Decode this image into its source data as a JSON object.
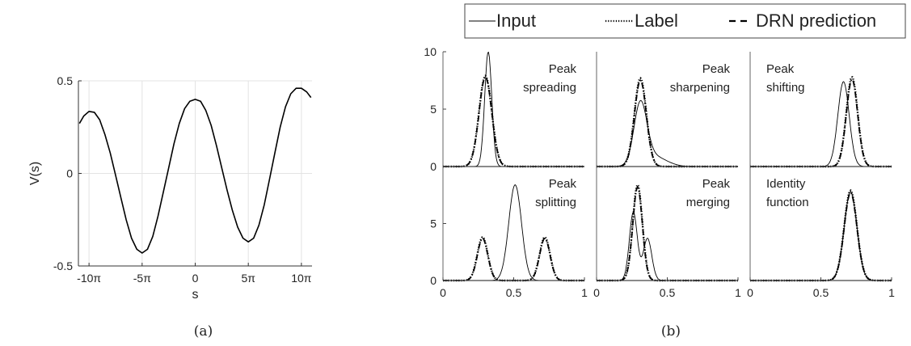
{
  "chart_data": [
    {
      "id": "a",
      "type": "line",
      "caption": "(a)",
      "xlabel": "s",
      "ylabel": "V(s)",
      "xlim": [
        -11.0,
        11.0
      ],
      "ylim": [
        -0.5,
        0.5
      ],
      "xunit": "pi",
      "xticks": [
        -10,
        -5,
        0,
        5,
        10
      ],
      "xtick_labels": [
        "-10π",
        "-5π",
        "0",
        "5π",
        "10π"
      ],
      "yticks": [
        -0.5,
        0,
        0.5
      ],
      "ytick_labels": [
        "-0.5",
        "0",
        "0.5"
      ],
      "grid": true,
      "series": [
        {
          "style": "solid",
          "color": "#000000",
          "x": [
            -10.9,
            -10.5,
            -10.0,
            -9.5,
            -9.0,
            -8.5,
            -8.0,
            -7.5,
            -7.0,
            -6.5,
            -6.0,
            -5.5,
            -5.0,
            -4.5,
            -4.0,
            -3.5,
            -3.0,
            -2.5,
            -2.0,
            -1.5,
            -1.0,
            -0.5,
            0.0,
            0.5,
            1.0,
            1.5,
            2.0,
            2.5,
            3.0,
            3.5,
            4.0,
            4.5,
            5.0,
            5.5,
            6.0,
            6.5,
            7.0,
            7.5,
            8.0,
            8.5,
            9.0,
            9.5,
            10.0,
            10.5,
            10.9
          ],
          "y": [
            0.27,
            0.31,
            0.335,
            0.33,
            0.29,
            0.21,
            0.11,
            -0.01,
            -0.13,
            -0.25,
            -0.35,
            -0.41,
            -0.43,
            -0.41,
            -0.34,
            -0.23,
            -0.1,
            0.03,
            0.16,
            0.27,
            0.35,
            0.39,
            0.4,
            0.39,
            0.34,
            0.26,
            0.15,
            0.03,
            -0.09,
            -0.2,
            -0.29,
            -0.35,
            -0.37,
            -0.35,
            -0.28,
            -0.17,
            -0.03,
            0.11,
            0.25,
            0.36,
            0.43,
            0.46,
            0.46,
            0.44,
            0.41
          ]
        }
      ]
    },
    {
      "id": "b",
      "type": "line",
      "caption": "(b)",
      "legend": {
        "position": "top",
        "entries": [
          {
            "label": "Input",
            "style": "solid"
          },
          {
            "label": "Label",
            "style": "dotted"
          },
          {
            "label": "DRN prediction",
            "style": "dashdot"
          }
        ]
      },
      "xlim": [
        0,
        1
      ],
      "ylim_top": [
        0,
        10
      ],
      "ylim_bottom": [
        0,
        10
      ],
      "yticks_top": [
        0,
        5,
        10
      ],
      "ytick_labels_top": [
        "0",
        "5",
        "10"
      ],
      "yticks_bottom": [
        0,
        5
      ],
      "ytick_labels_bottom": [
        "0",
        "5"
      ],
      "xticks": [
        0,
        0.5,
        1
      ],
      "xtick_labels": [
        "0",
        "0.5",
        "1"
      ],
      "grid": false,
      "panels": [
        {
          "label": [
            "Peak",
            "spreading"
          ],
          "input": [
            [
              0.32,
              10.0,
              0.025
            ]
          ],
          "label_curve": [
            [
              0.3,
              7.9,
              0.045
            ]
          ],
          "prediction": [
            [
              0.3,
              7.8,
              0.045
            ]
          ]
        },
        {
          "label": [
            "Peak",
            "sharpening"
          ],
          "input": [
            [
              0.31,
              5.2,
              0.045
            ],
            [
              0.4,
              0.9,
              0.09
            ]
          ],
          "label_curve": [
            [
              0.31,
              7.7,
              0.042
            ]
          ],
          "prediction": [
            [
              0.31,
              7.5,
              0.042
            ]
          ]
        },
        {
          "label": [
            "Peak",
            "shifting"
          ],
          "input": [
            [
              0.66,
              7.4,
              0.04
            ]
          ],
          "label_curve": [
            [
              0.72,
              7.8,
              0.04
            ]
          ],
          "prediction": [
            [
              0.72,
              7.6,
              0.04
            ]
          ]
        },
        {
          "label": [
            "Peak",
            "splitting"
          ],
          "input": [
            [
              0.51,
              8.4,
              0.045
            ]
          ],
          "label_curve": [
            [
              0.28,
              3.8,
              0.037
            ],
            [
              0.72,
              3.8,
              0.037
            ]
          ],
          "prediction": [
            [
              0.28,
              3.7,
              0.037
            ],
            [
              0.72,
              3.7,
              0.037
            ]
          ]
        },
        {
          "label": [
            "Peak",
            "merging"
          ],
          "input": [
            [
              0.26,
              6.0,
              0.028
            ],
            [
              0.36,
              3.7,
              0.03
            ]
          ],
          "label_curve": [
            [
              0.29,
              8.4,
              0.034
            ]
          ],
          "prediction": [
            [
              0.29,
              8.2,
              0.034
            ]
          ]
        },
        {
          "label": [
            "Identity",
            "function"
          ],
          "input": [
            [
              0.71,
              7.8,
              0.045
            ]
          ],
          "label_curve": [
            [
              0.71,
              7.9,
              0.045
            ]
          ],
          "prediction": [
            [
              0.71,
              7.7,
              0.045
            ]
          ]
        }
      ]
    }
  ]
}
